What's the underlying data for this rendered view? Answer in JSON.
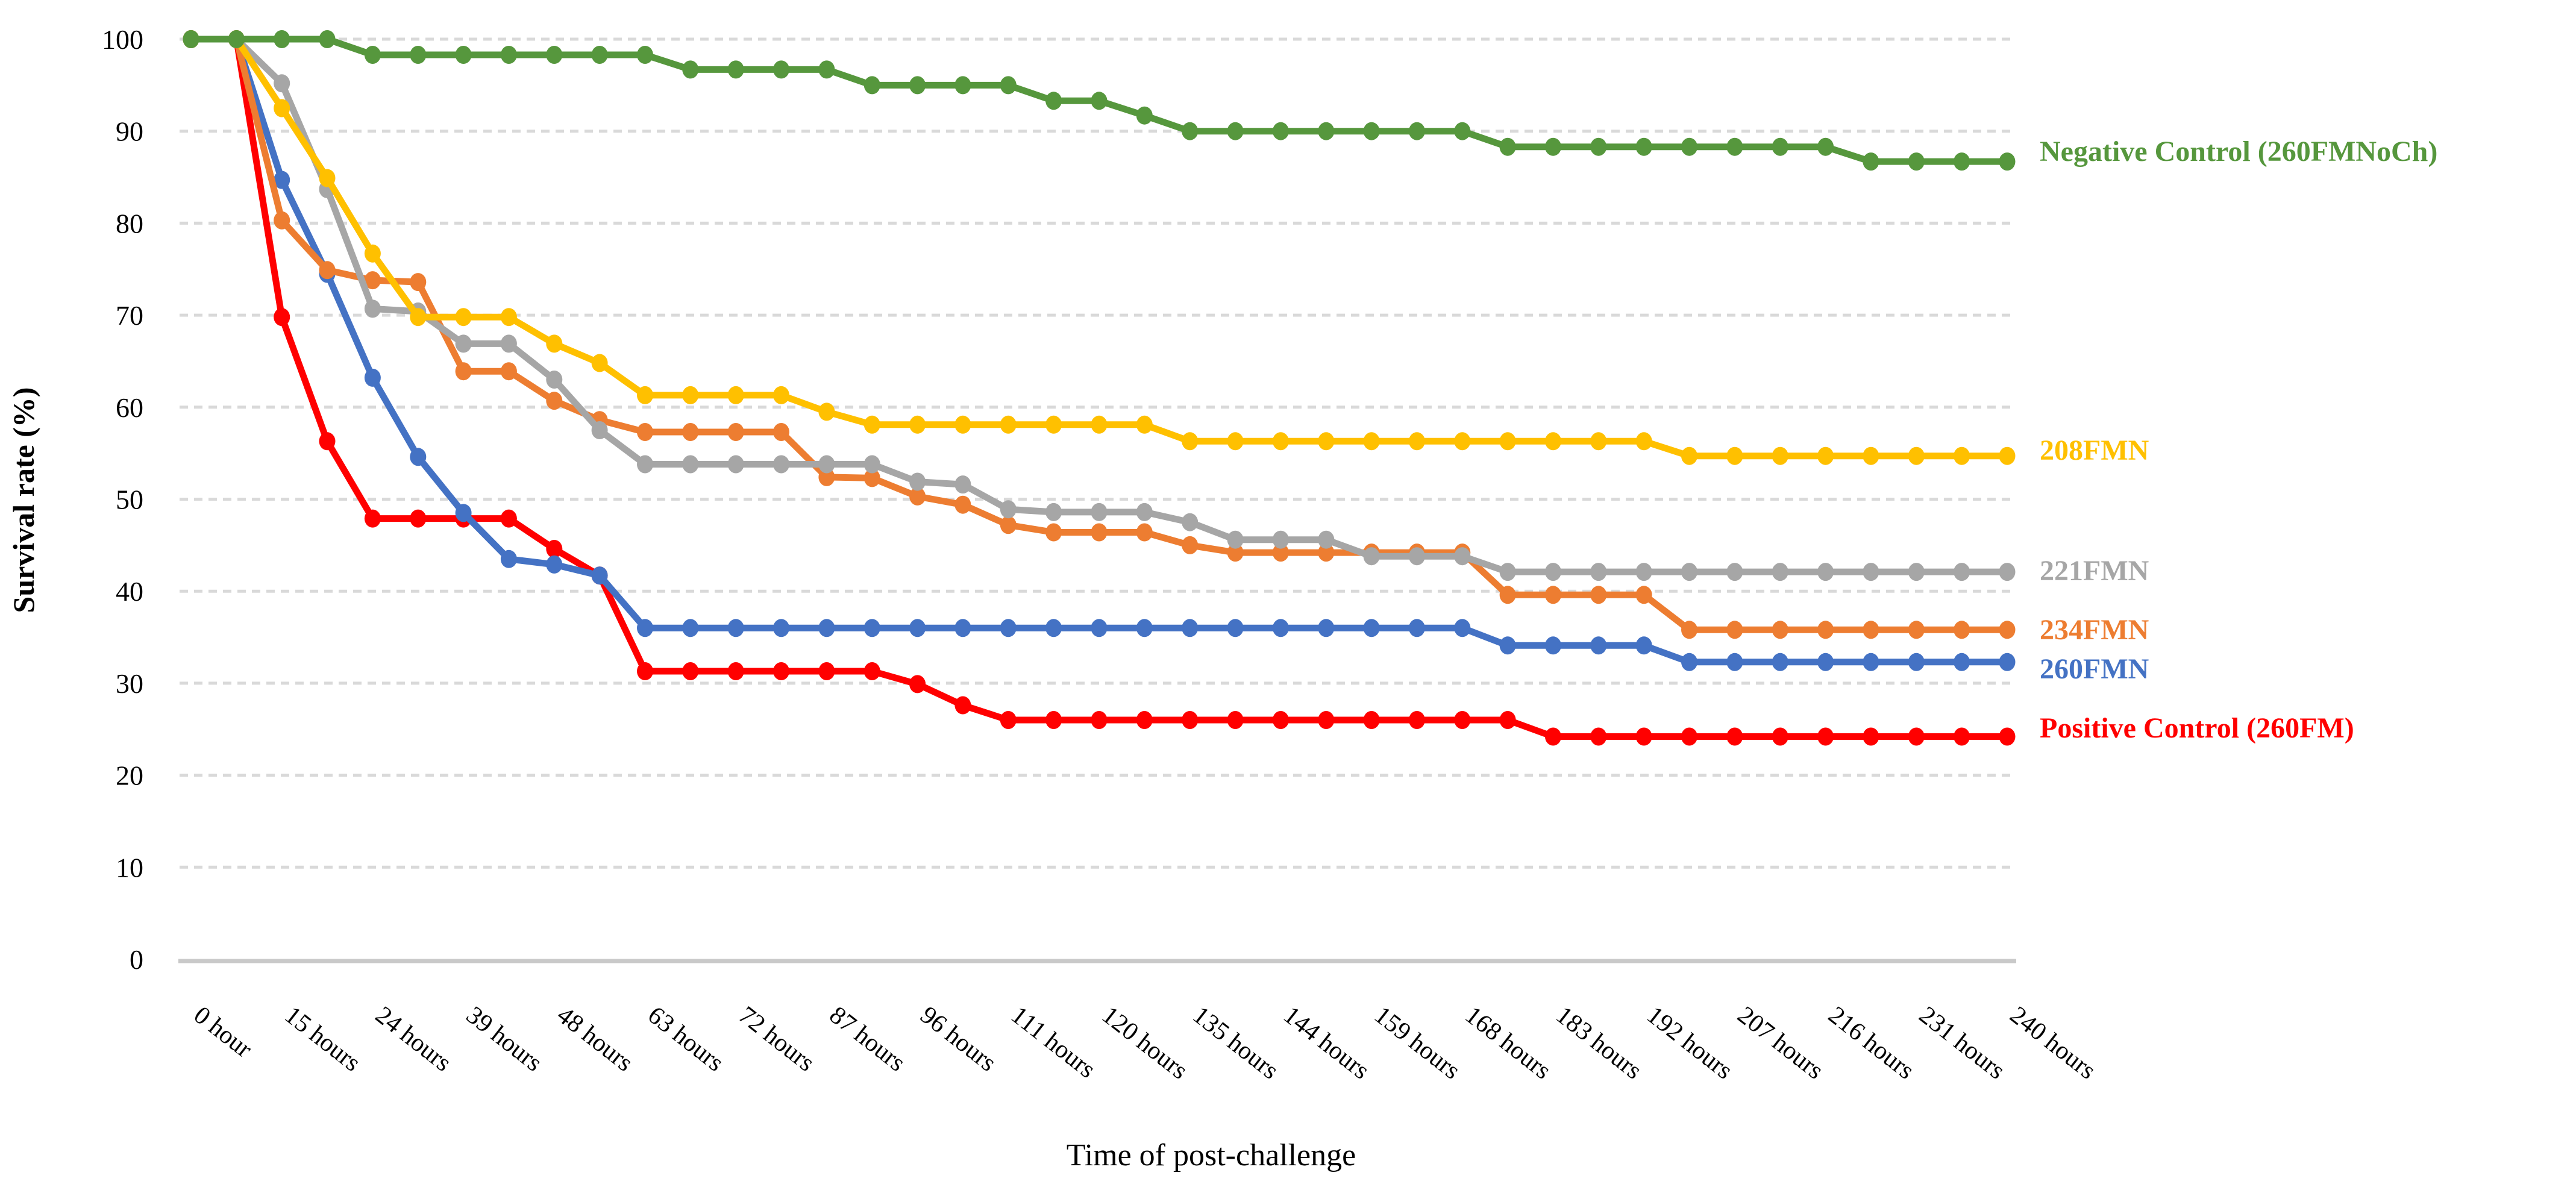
{
  "chart_data": {
    "type": "line",
    "title": "",
    "xlabel": "Time of post-challenge",
    "ylabel": "Survival rate (%)",
    "ylim": [
      0,
      100
    ],
    "y_ticks": [
      0,
      10,
      20,
      30,
      40,
      50,
      60,
      70,
      80,
      90,
      100
    ],
    "grid": "horizontal dashed light-gray gridlines at every 10%",
    "legend_position": "right of plot, colored text labels stacked next to line ends",
    "x": {
      "hours": [
        0,
        9,
        15,
        21,
        24,
        33,
        39,
        45,
        48,
        57,
        63,
        69,
        72,
        81,
        87,
        93,
        96,
        105,
        111,
        117,
        120,
        129,
        135,
        141,
        144,
        153,
        159,
        165,
        168,
        177,
        183,
        189,
        192,
        201,
        207,
        213,
        216,
        225,
        231,
        237,
        240
      ],
      "tick_labels": [
        "0 hour",
        "15 hours",
        "24 hours",
        "39 hours",
        "48 hours",
        "63 hours",
        "72 hours",
        "87 hours",
        "96 hours",
        "111 hours",
        "120 hours",
        "135 hours",
        "144 hours",
        "159 hours",
        "168 hours",
        "183 hours",
        "192 hours",
        "207 hours",
        "216 hours",
        "231 hours",
        "240 hours"
      ],
      "labels_every": 2,
      "tick_label_rotation_deg": 38
    },
    "series": [
      {
        "id": "negative-control-260fmnoch",
        "name": "Negative Control (260FMNoCh)",
        "color": "#56973D",
        "legend_y_value": 87.9,
        "values": [
          100,
          100,
          100,
          100,
          98.3,
          98.3,
          98.3,
          98.3,
          98.3,
          98.3,
          98.3,
          96.7,
          96.7,
          96.7,
          96.7,
          95,
          95,
          95,
          95,
          93.3,
          93.3,
          91.7,
          90,
          90,
          90,
          90,
          90,
          90,
          90,
          88.3,
          88.3,
          88.3,
          88.3,
          88.3,
          88.3,
          88.3,
          88.3,
          86.7,
          86.7,
          86.7,
          86.7
        ]
      },
      {
        "id": "208fmn",
        "name": "208FMN",
        "color": "#FFC000",
        "legend_y_value": 55.4,
        "values": [
          100,
          100,
          92.5,
          84.9,
          76.7,
          69.8,
          69.8,
          69.8,
          66.9,
          64.8,
          61.3,
          61.3,
          61.3,
          61.3,
          59.5,
          58.1,
          58.1,
          58.1,
          58.1,
          58.1,
          58.1,
          58.1,
          56.3,
          56.3,
          56.3,
          56.3,
          56.3,
          56.3,
          56.3,
          56.3,
          56.3,
          56.3,
          56.3,
          54.7,
          54.7,
          54.7,
          54.7,
          54.7,
          54.7,
          54.7,
          54.7
        ]
      },
      {
        "id": "221fmn",
        "name": "221FMN",
        "color": "#A6A6A6",
        "legend_y_value": 42.3,
        "values": [
          100,
          100,
          95.2,
          83.7,
          70.7,
          70.4,
          66.9,
          66.9,
          63.0,
          57.5,
          53.8,
          53.8,
          53.8,
          53.8,
          53.8,
          53.8,
          51.9,
          51.6,
          48.9,
          48.6,
          48.6,
          48.6,
          47.5,
          45.6,
          45.6,
          45.6,
          43.8,
          43.8,
          43.8,
          42.1,
          42.1,
          42.1,
          42.1,
          42.1,
          42.1,
          42.1,
          42.1,
          42.1,
          42.1,
          42.1,
          42.1
        ]
      },
      {
        "id": "234fmn",
        "name": "234FMN",
        "color": "#ED7D31",
        "legend_y_value": 35.9,
        "values": [
          100,
          100,
          80.3,
          74.9,
          73.8,
          73.6,
          63.9,
          63.9,
          60.7,
          58.6,
          57.3,
          57.3,
          57.3,
          57.3,
          52.4,
          52.3,
          50.3,
          49.4,
          47.2,
          46.4,
          46.4,
          46.4,
          45.0,
          44.2,
          44.2,
          44.2,
          44.2,
          44.2,
          44.2,
          39.6,
          39.6,
          39.6,
          39.6,
          35.8,
          35.8,
          35.8,
          35.8,
          35.8,
          35.8,
          35.8,
          35.8
        ]
      },
      {
        "id": "260fmn",
        "name": "260FMN",
        "color": "#4472C4",
        "legend_y_value": 31.6,
        "values": [
          100,
          100,
          84.7,
          74.5,
          63.2,
          54.6,
          48.5,
          43.5,
          42.9,
          41.7,
          36.0,
          36.0,
          36.0,
          36.0,
          36.0,
          36.0,
          36.0,
          36.0,
          36.0,
          36.0,
          36.0,
          36.0,
          36.0,
          36.0,
          36.0,
          36.0,
          36.0,
          36.0,
          36.0,
          34.1,
          34.1,
          34.1,
          34.1,
          32.3,
          32.3,
          32.3,
          32.3,
          32.3,
          32.3,
          32.3,
          32.3
        ]
      },
      {
        "id": "positive-control-260fm",
        "name": "Positive Control (260FM)",
        "color": "#FF0000",
        "legend_y_value": 25.2,
        "values": [
          100,
          100,
          69.8,
          56.3,
          47.9,
          47.9,
          47.9,
          47.9,
          44.6,
          41.7,
          31.3,
          31.3,
          31.3,
          31.3,
          31.3,
          31.3,
          29.9,
          27.6,
          26.0,
          26.0,
          26.0,
          26.0,
          26.0,
          26.0,
          26.0,
          26.0,
          26.0,
          26.0,
          26.0,
          26.0,
          24.2,
          24.2,
          24.2,
          24.2,
          24.2,
          24.2,
          24.2,
          24.2,
          24.2,
          24.2,
          24.2
        ]
      }
    ]
  }
}
